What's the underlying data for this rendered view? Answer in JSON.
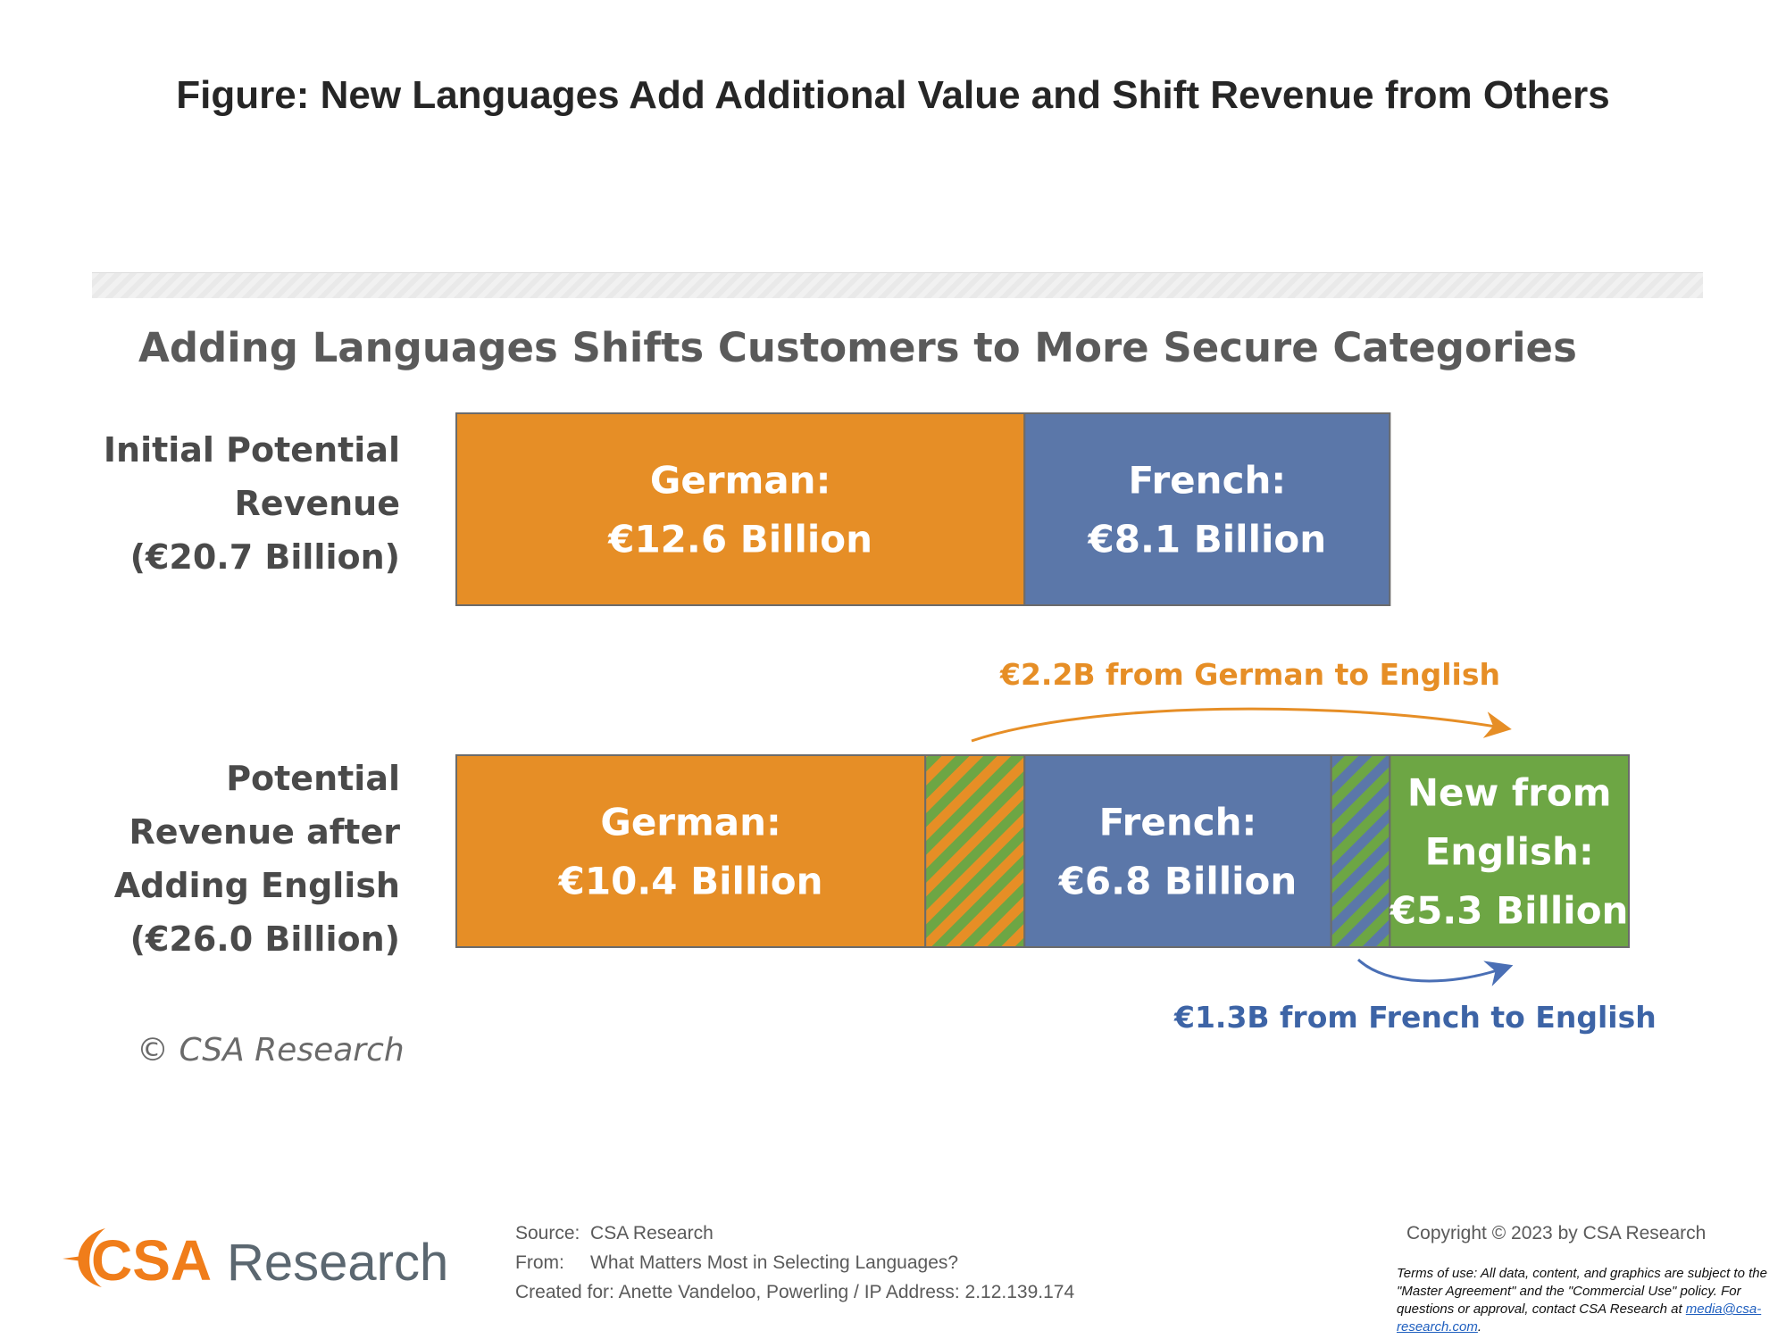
{
  "page_title": "Figure: New Languages Add Additional Value and Shift Revenue from Others",
  "chart_data": {
    "type": "bar",
    "orientation": "horizontal-stacked",
    "title": "Adding Languages Shifts Customers to More Secure Categories",
    "colors": {
      "german": "#e68e26",
      "french": "#5b77a9",
      "english": "#6da644",
      "label_text": "#4a4a4a",
      "german_arrow": "#e68e26",
      "french_arrow": "#4a6fb5",
      "french_annotation": "#3d64a6"
    },
    "rows": [
      {
        "label_lines": [
          "Initial Potential",
          "Revenue",
          "(€20.7 Billion)"
        ],
        "segments": [
          {
            "name": "German",
            "value": 12.6,
            "label_lines": [
              "German:",
              "€12.6 Billion"
            ],
            "color": "#e68e26"
          },
          {
            "name": "French",
            "value": 8.1,
            "label_lines": [
              "French:",
              "€8.1 Billion"
            ],
            "color": "#5b77a9"
          }
        ]
      },
      {
        "label_lines": [
          "Potential",
          "Revenue after",
          "Adding English",
          "(€26.0 Billion)"
        ],
        "segments": [
          {
            "name": "German",
            "value": 10.4,
            "label_lines": [
              "German:",
              "€10.4 Billion"
            ],
            "color": "#e68e26"
          },
          {
            "name": "German to English",
            "value": 2.2,
            "label_lines": [],
            "pattern": "stripes",
            "stripe_colors": [
              "#e68e26",
              "#6da644"
            ]
          },
          {
            "name": "French",
            "value": 6.8,
            "label_lines": [
              "French:",
              "€6.8 Billion"
            ],
            "color": "#5b77a9"
          },
          {
            "name": "French to English",
            "value": 1.3,
            "label_lines": [],
            "pattern": "stripes",
            "stripe_colors": [
              "#5b77a9",
              "#6da644"
            ]
          },
          {
            "name": "New from English",
            "value": 5.3,
            "label_lines": [
              "New from",
              "English:",
              "€5.3 Billion"
            ],
            "color": "#6da644"
          }
        ]
      }
    ],
    "annotations": [
      {
        "text": "€2.2B from German to English",
        "color": "#e68e26"
      },
      {
        "text": "€1.3B from French to English",
        "color": "#3d64a6"
      }
    ],
    "copyright": "© CSA Research"
  },
  "footer": {
    "logo_csa": "CSA",
    "logo_research": "Research",
    "source_label": "Source:",
    "source_value": "CSA Research",
    "from_label": "From:",
    "from_value": "What Matters Most in Selecting Languages?",
    "created_label": "Created for:",
    "created_value": "Anette Vandeloo, Powerling / IP Address: 2.12.139.174",
    "copyright": "Copyright © 2023 by CSA Research",
    "terms_text": "Terms of use: All data, content, and graphics are subject to the \"Master Agreement\" and the \"Commercial Use\" policy. For questions or approval, contact CSA Research at",
    "terms_email": "media@csa-research.com",
    "terms_end": "."
  }
}
